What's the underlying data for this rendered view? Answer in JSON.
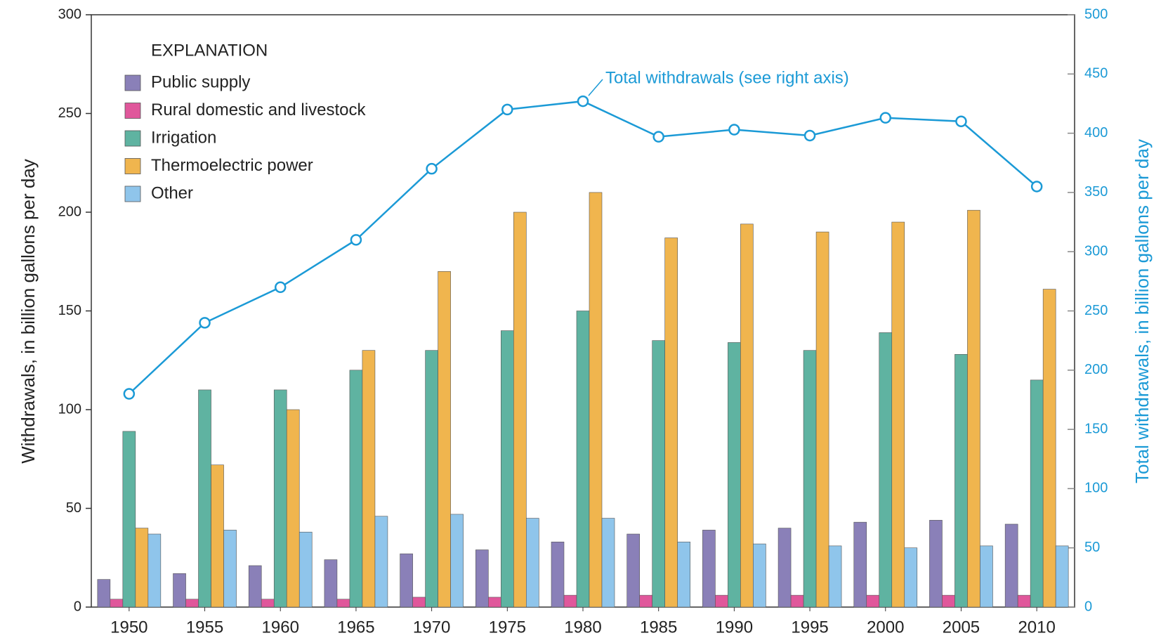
{
  "chart_data": {
    "type": "bar",
    "ylabel": "Withdrawals, in billion gallons per day",
    "y2label": "Total withdrawals, in billion gallons per day",
    "legend_title": "EXPLANATION",
    "legend": "upper left",
    "annotation": "Total withdrawals (see right axis)",
    "categories": [
      "1950",
      "1955",
      "1960",
      "1965",
      "1970",
      "1975",
      "1980",
      "1985",
      "1990",
      "1995",
      "2000",
      "2005",
      "2010"
    ],
    "series": [
      {
        "name": "Public supply",
        "color": "#8a80b8",
        "values": [
          14,
          17,
          21,
          24,
          27,
          29,
          33,
          37,
          39,
          40,
          43,
          44,
          42
        ]
      },
      {
        "name": "Rural domestic and livestock",
        "color": "#e0579b",
        "values": [
          4,
          4,
          4,
          4,
          5,
          5,
          6,
          6,
          6,
          6,
          6,
          6,
          6
        ]
      },
      {
        "name": "Irrigation",
        "color": "#5fb3a1",
        "values": [
          89,
          110,
          110,
          120,
          130,
          140,
          150,
          135,
          134,
          130,
          139,
          128,
          115
        ]
      },
      {
        "name": "Thermoelectric power",
        "color": "#f0b54e",
        "values": [
          40,
          72,
          100,
          130,
          170,
          200,
          210,
          187,
          194,
          190,
          195,
          201,
          161
        ]
      },
      {
        "name": "Other",
        "color": "#8fc5eb",
        "values": [
          37,
          39,
          38,
          46,
          47,
          45,
          45,
          33,
          32,
          31,
          30,
          31,
          31
        ]
      },
      {
        "name": "Total withdrawals",
        "color": "#1b9ad6",
        "axis": "y2",
        "values": [
          180,
          240,
          270,
          310,
          370,
          420,
          427,
          397,
          403,
          398,
          413,
          410,
          355
        ]
      }
    ],
    "ylim": [
      0,
      300
    ],
    "yticks": [
      0,
      50,
      100,
      150,
      200,
      250,
      300
    ],
    "y2lim": [
      0,
      500
    ],
    "y2ticks": [
      0,
      50,
      100,
      150,
      200,
      250,
      300,
      350,
      400,
      450,
      500
    ]
  }
}
